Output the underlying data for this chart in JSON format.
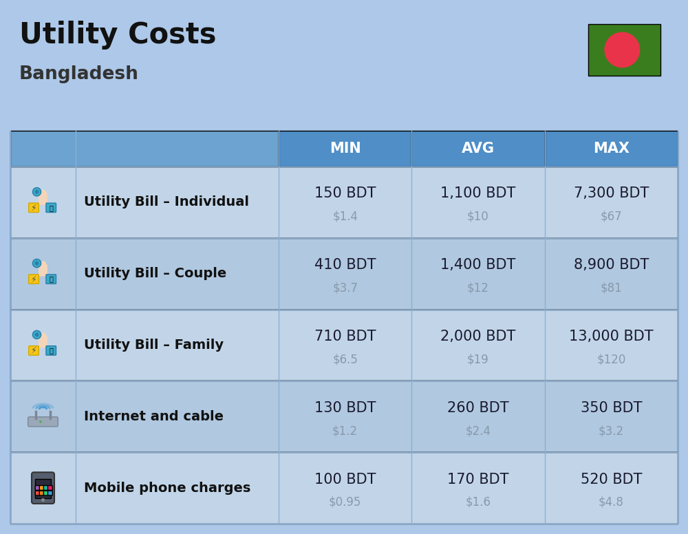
{
  "title": "Utility Costs",
  "subtitle": "Bangladesh",
  "bg_color": "#adc8e8",
  "header_bg_color_left": "#6ca3d0",
  "header_bg_color_right": "#4f8ec7",
  "row_bg_even": "#c2d5e8",
  "row_bg_odd": "#b0c8e0",
  "header_text_color": "#ffffff",
  "row_label_color": "#111111",
  "value_color": "#1a1a2e",
  "usd_color": "#8899aa",
  "divider_color": "#8aafd4",
  "col_headers": [
    "MIN",
    "AVG",
    "MAX"
  ],
  "rows": [
    {
      "label": "Utility Bill – Individual",
      "min_bdt": "150 BDT",
      "min_usd": "$1.4",
      "avg_bdt": "1,100 BDT",
      "avg_usd": "$10",
      "max_bdt": "7,300 BDT",
      "max_usd": "$67"
    },
    {
      "label": "Utility Bill – Couple",
      "min_bdt": "410 BDT",
      "min_usd": "$3.7",
      "avg_bdt": "1,400 BDT",
      "avg_usd": "$12",
      "max_bdt": "8,900 BDT",
      "max_usd": "$81"
    },
    {
      "label": "Utility Bill – Family",
      "min_bdt": "710 BDT",
      "min_usd": "$6.5",
      "avg_bdt": "2,000 BDT",
      "avg_usd": "$19",
      "max_bdt": "13,000 BDT",
      "max_usd": "$120"
    },
    {
      "label": "Internet and cable",
      "min_bdt": "130 BDT",
      "min_usd": "$1.2",
      "avg_bdt": "260 BDT",
      "avg_usd": "$2.4",
      "max_bdt": "350 BDT",
      "max_usd": "$3.2"
    },
    {
      "label": "Mobile phone charges",
      "min_bdt": "100 BDT",
      "min_usd": "$0.95",
      "avg_bdt": "170 BDT",
      "avg_usd": "$1.6",
      "max_bdt": "520 BDT",
      "max_usd": "$4.8"
    }
  ],
  "flag_green": "#3a7d1e",
  "flag_red": "#e8334a",
  "title_fontsize": 30,
  "subtitle_fontsize": 19,
  "header_fontsize": 15,
  "label_fontsize": 14,
  "value_fontsize": 15,
  "usd_fontsize": 12
}
